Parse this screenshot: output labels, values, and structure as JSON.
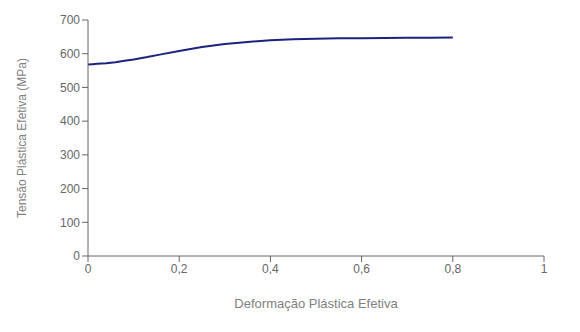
{
  "chart_data": {
    "type": "line",
    "xlabel": "Deformação Plástica Efetiva",
    "ylabel": "Tensão Plástica Efetiva (MPa)",
    "x": [
      0.0,
      0.01,
      0.02,
      0.04,
      0.06,
      0.08,
      0.1,
      0.13,
      0.16,
      0.2,
      0.25,
      0.3,
      0.35,
      0.4,
      0.45,
      0.5,
      0.55,
      0.6,
      0.65,
      0.7,
      0.75,
      0.8
    ],
    "values": [
      568,
      569,
      570,
      572,
      575,
      579,
      583,
      590,
      598,
      608,
      620,
      629,
      635,
      640,
      643,
      644.5,
      645.5,
      646,
      646.5,
      647,
      647.5,
      648
    ],
    "color": "#1a237e",
    "xlim": [
      0,
      1.0
    ],
    "ylim": [
      0,
      700
    ],
    "xticks": [
      0,
      {
        "value": 0.2,
        "label": "0,2"
      },
      {
        "value": 0.4,
        "label": "0,4"
      },
      {
        "value": 0.6,
        "label": "0,6"
      },
      {
        "value": 0.8,
        "label": "0,8"
      },
      1
    ],
    "yticks": [
      0,
      100,
      200,
      300,
      400,
      500,
      600,
      700
    ],
    "grid": false
  }
}
